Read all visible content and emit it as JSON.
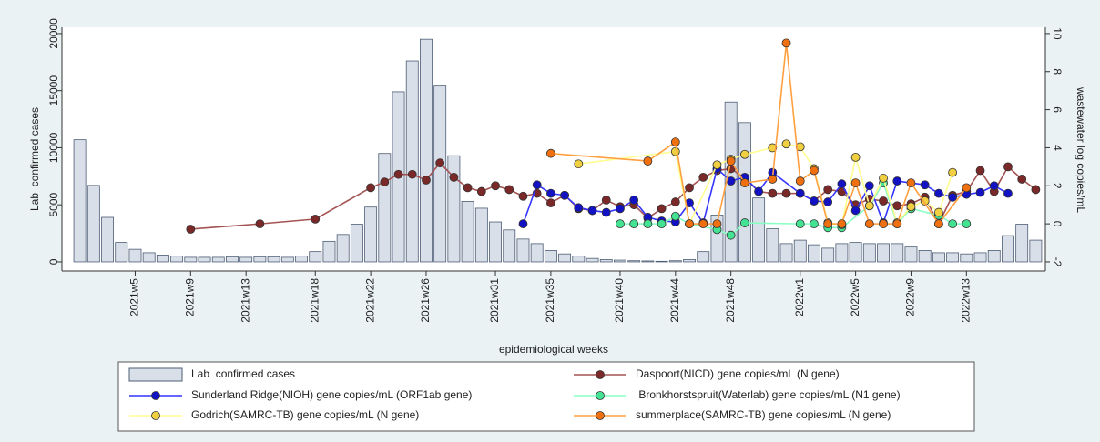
{
  "chart_data": {
    "type": "combo",
    "x_label": "epidemiological weeks",
    "y_label": "Lab  confirmed cases",
    "y2_label": "wastewater log copies/mL",
    "categories": [
      null,
      null,
      null,
      null,
      "2021w5",
      null,
      null,
      null,
      "2021w9",
      null,
      null,
      null,
      "2021w13",
      null,
      null,
      null,
      null,
      "2021w18",
      null,
      null,
      null,
      "2021w22",
      null,
      null,
      null,
      "2021w26",
      null,
      null,
      null,
      null,
      "2021w31",
      null,
      null,
      null,
      "2021w35",
      null,
      null,
      null,
      null,
      "2021w40",
      null,
      null,
      null,
      "2021w44",
      null,
      null,
      null,
      "2021w48",
      null,
      null,
      null,
      null,
      "2022w1",
      null,
      null,
      null,
      "2022w5",
      null,
      null,
      null,
      "2022w9",
      null,
      null,
      null,
      "2022w13",
      null,
      null,
      null,
      null,
      null
    ],
    "ylim": [
      -800,
      20550
    ],
    "yticks": [
      0,
      5000,
      10000,
      15000,
      20000
    ],
    "y2lim": [
      -2.48,
      10.33
    ],
    "y2ticks": [
      -2,
      0,
      2,
      4,
      6,
      8,
      10
    ],
    "series": [
      {
        "name": "Lab  confirmed cases",
        "type": "bar",
        "color": "#d9dfe9",
        "edge_color": "#4d5d75",
        "values": [
          10700,
          6700,
          3900,
          1700,
          1100,
          800,
          600,
          500,
          400,
          400,
          400,
          450,
          400,
          450,
          450,
          400,
          500,
          900,
          1800,
          2400,
          3300,
          4800,
          9500,
          14900,
          17600,
          19500,
          15400,
          9300,
          5300,
          4700,
          3500,
          2800,
          2000,
          1600,
          1000,
          700,
          500,
          300,
          200,
          150,
          100,
          80,
          50,
          100,
          200,
          900,
          4100,
          14000,
          12200,
          5600,
          2900,
          1600,
          1900,
          1500,
          1200,
          1600,
          1700,
          1600,
          1600,
          1600,
          1300,
          1000,
          800,
          800,
          700,
          800,
          1000,
          2300,
          3300,
          1900
        ]
      },
      {
        "name": "Daspoort(NICD) gene copies/mL (N gene)",
        "type": "line",
        "axis": "y2",
        "color": "#a45252",
        "marker_color": "#7a2828",
        "values": [
          null,
          null,
          null,
          null,
          null,
          null,
          null,
          null,
          -0.28,
          null,
          null,
          null,
          null,
          0.0,
          null,
          null,
          null,
          0.25,
          null,
          null,
          null,
          1.9,
          2.2,
          2.6,
          2.6,
          2.3,
          3.2,
          2.45,
          1.9,
          1.7,
          2.0,
          1.8,
          1.45,
          1.6,
          1.1,
          1.5,
          0.8,
          0.7,
          1.25,
          0.9,
          1.0,
          0.3,
          0.8,
          1.15,
          1.9,
          2.45,
          2.8,
          2.9,
          2.4,
          1.7,
          1.6,
          1.6,
          1.6,
          1.2,
          1.8,
          1.7,
          1.0,
          1.3,
          1.2,
          0.95,
          1.05,
          1.4,
          0.0,
          1.5,
          1.7,
          2.8,
          1.7,
          3.0,
          2.35,
          1.8
        ]
      },
      {
        "name": "Sunderland Ridge(NIOH) gene copies/mL (ORF1ab gene)",
        "type": "line",
        "axis": "y2",
        "color": "#3434ff",
        "marker_color": "#1212c4",
        "values": [
          null,
          null,
          null,
          null,
          null,
          null,
          null,
          null,
          null,
          null,
          null,
          null,
          null,
          null,
          null,
          null,
          null,
          null,
          null,
          null,
          null,
          null,
          null,
          null,
          null,
          null,
          null,
          null,
          null,
          null,
          null,
          null,
          0.0,
          2.05,
          1.6,
          1.5,
          0.85,
          0.7,
          0.6,
          0.8,
          1.25,
          0.35,
          0.15,
          0.1,
          1.1,
          0.05,
          2.9,
          2.25,
          2.45,
          1.7,
          2.7,
          null,
          1.6,
          1.2,
          1.15,
          2.1,
          0.7,
          2.0,
          0.05,
          2.25,
          null,
          2.05,
          1.6,
          1.4,
          1.55,
          1.65,
          2.0,
          1.6,
          null,
          null
        ]
      },
      {
        "name": " Bronkhorstspruit(Waterlab) gene copies/mL (N1 gene)",
        "type": "line",
        "axis": "y2",
        "color": "#88ffc4",
        "marker_color": "#44e394",
        "values": [
          null,
          null,
          null,
          null,
          null,
          null,
          null,
          null,
          null,
          null,
          null,
          null,
          null,
          null,
          null,
          null,
          null,
          null,
          null,
          null,
          null,
          null,
          null,
          null,
          null,
          null,
          null,
          null,
          null,
          null,
          null,
          null,
          null,
          null,
          null,
          null,
          null,
          null,
          null,
          0.0,
          0.0,
          0.0,
          0.0,
          0.4,
          0.0,
          null,
          -0.3,
          -0.6,
          0.05,
          null,
          null,
          null,
          0.0,
          0.0,
          -0.2,
          -0.2,
          null,
          0.95,
          2.15,
          0.0,
          0.8,
          null,
          0.45,
          0.0,
          0.0,
          null,
          null,
          null,
          null,
          null
        ]
      },
      {
        "name": "Godrich(SAMRC-TB) gene copies/mL (N gene)",
        "type": "line",
        "axis": "y2",
        "color": "#ffff90",
        "marker_color": "#f0d040",
        "values": [
          null,
          null,
          null,
          null,
          null,
          null,
          null,
          null,
          null,
          null,
          null,
          null,
          null,
          null,
          null,
          null,
          null,
          null,
          null,
          null,
          null,
          null,
          null,
          null,
          null,
          null,
          null,
          null,
          null,
          null,
          null,
          null,
          null,
          null,
          null,
          null,
          3.15,
          null,
          null,
          null,
          null,
          null,
          null,
          3.8,
          0.0,
          null,
          3.1,
          3.4,
          3.65,
          null,
          4.0,
          4.2,
          4.05,
          2.9,
          0.05,
          -0.05,
          3.5,
          0.95,
          2.4,
          0.05,
          0.9,
          1.2,
          0.6,
          2.7,
          null,
          null,
          null,
          null,
          null,
          null
        ]
      },
      {
        "name": "summerplace(SAMRC-TB) gene copies/mL (N gene)",
        "type": "line",
        "axis": "y2",
        "color": "#ffa040",
        "marker_color": "#f07010",
        "values": [
          null,
          null,
          null,
          null,
          null,
          null,
          null,
          null,
          null,
          null,
          null,
          null,
          null,
          null,
          null,
          null,
          null,
          null,
          null,
          null,
          null,
          null,
          null,
          null,
          null,
          null,
          null,
          null,
          null,
          null,
          null,
          null,
          null,
          null,
          3.7,
          null,
          null,
          null,
          null,
          null,
          null,
          3.3,
          null,
          4.3,
          0.0,
          0.0,
          0.0,
          3.3,
          2.15,
          null,
          2.35,
          9.5,
          2.25,
          2.8,
          0.0,
          0.0,
          2.15,
          0.0,
          0.0,
          0.0,
          2.15,
          null,
          0.0,
          null,
          1.9,
          null,
          null,
          null,
          null,
          null
        ]
      }
    ]
  }
}
